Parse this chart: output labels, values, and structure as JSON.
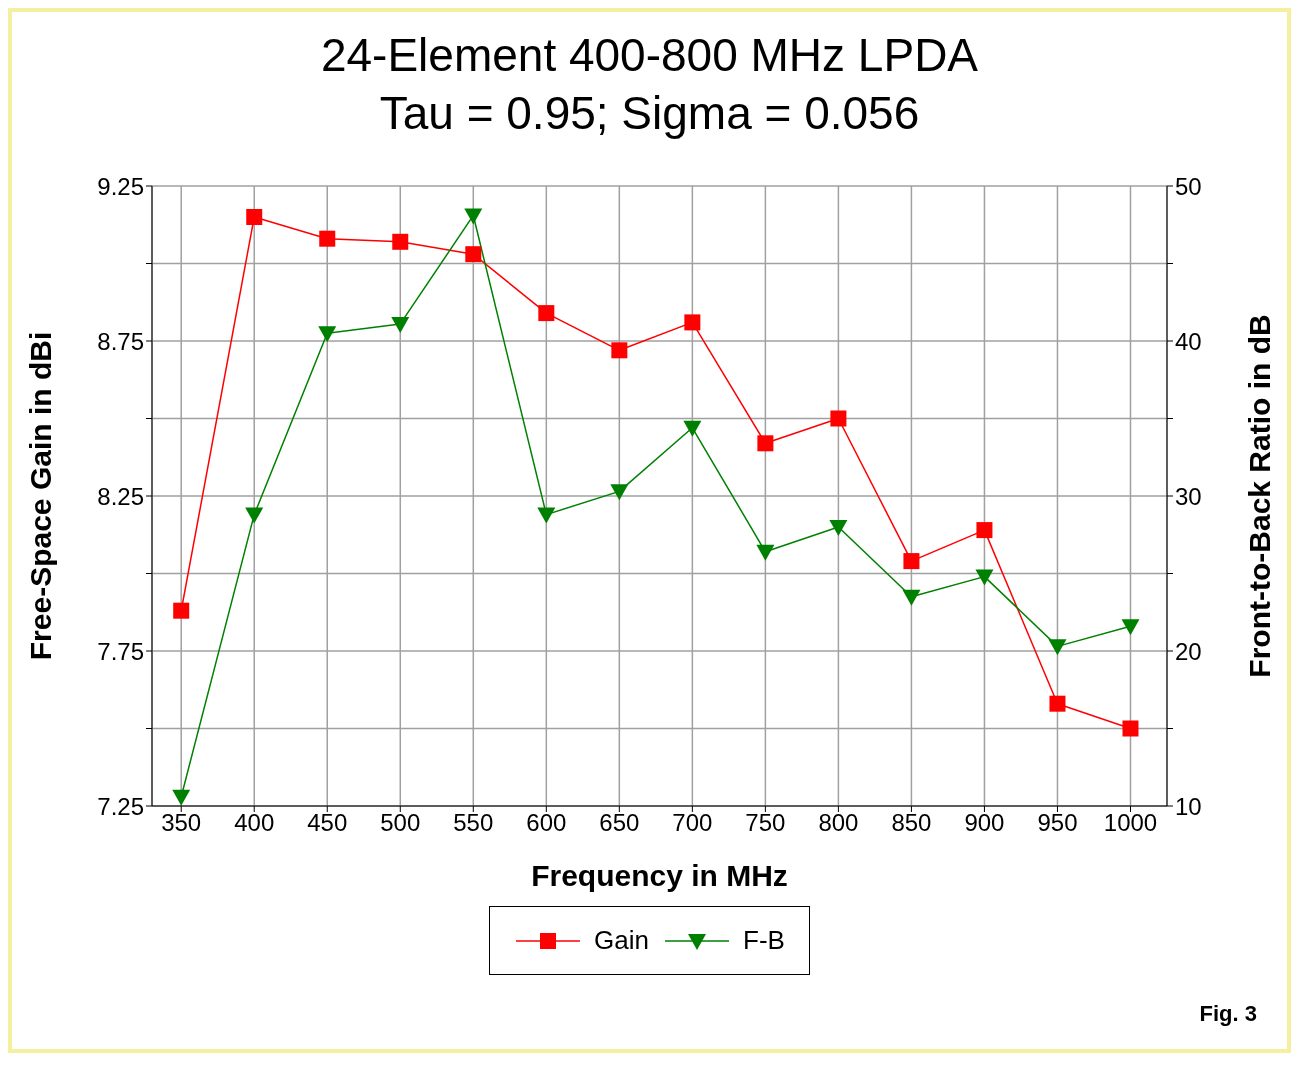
{
  "chart_data": {
    "type": "line",
    "title": "24-Element 400-800 MHz LPDA",
    "subtitle": "Tau = 0.95; Sigma = 0.056",
    "xlabel": "Frequency in MHz",
    "ylabel": "Free-Space Gain in dBi",
    "y2label": "Front-to-Back Ratio in dB",
    "annotations": [
      "Fig. 3"
    ],
    "x": [
      350,
      400,
      450,
      500,
      550,
      600,
      650,
      700,
      750,
      800,
      850,
      900,
      950,
      1000
    ],
    "series": [
      {
        "name": "Gain",
        "color": "#ff0000",
        "marker": "square",
        "values": [
          7.88,
          9.15,
          9.08,
          9.07,
          9.03,
          8.84,
          8.72,
          8.81,
          8.42,
          8.5,
          8.04,
          8.14,
          7.58,
          7.5
        ]
      },
      {
        "name": "F-B",
        "color": "#008000",
        "marker": "triangle",
        "axis": "y2",
        "values": [
          10.6,
          28.8,
          40.5,
          41.1,
          48.1,
          28.8,
          30.3,
          34.4,
          26.4,
          28,
          23.5,
          24.8,
          20.3,
          21.6
        ]
      }
    ],
    "xlim": [
      330,
      1025
    ],
    "xticks": [
      350,
      400,
      450,
      500,
      550,
      600,
      650,
      700,
      750,
      800,
      850,
      900,
      950,
      1000
    ],
    "ylim": [
      7.25,
      9.25
    ],
    "yticks": [
      7.25,
      {
        "value": 7.5,
        "label": null
      },
      7.75,
      {
        "value": 8,
        "label": null
      },
      8.25,
      {
        "value": 8.5,
        "label": null
      },
      8.75,
      {
        "value": 9,
        "label": null
      },
      9.25
    ],
    "y2lim": [
      10,
      50
    ],
    "y2ticks": [
      10,
      {
        "value": 15,
        "label": null
      },
      20,
      {
        "value": 25,
        "label": null
      },
      30,
      {
        "value": 35,
        "label": null
      },
      40,
      {
        "value": 45,
        "label": null
      },
      50
    ],
    "grid": true,
    "legend": "bottom",
    "line_style": "solid"
  }
}
